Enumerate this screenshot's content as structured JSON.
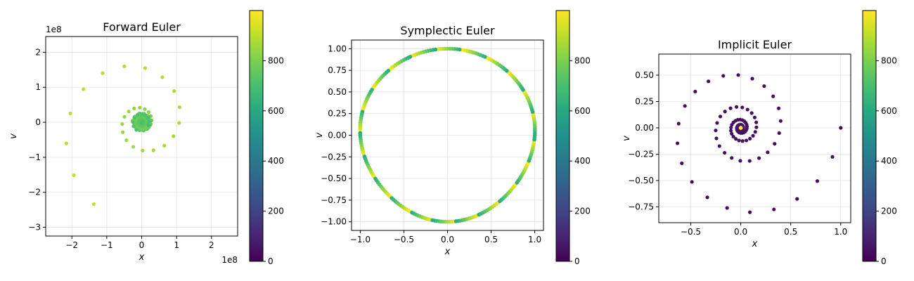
{
  "chart_data": [
    {
      "type": "scatter",
      "title": "Forward Euler",
      "xlabel": "x",
      "ylabel": "v",
      "xlim": [
        -2.75,
        2.75
      ],
      "ylim": [
        -3.25,
        2.45
      ],
      "x_offset_text": "1e8",
      "y_offset_text": "1e8",
      "xticks": [
        -2,
        -1,
        0,
        1,
        2
      ],
      "yticks": [
        -3,
        -2,
        -1,
        0,
        1,
        2
      ],
      "color_scale": {
        "min": 0,
        "max": 1000,
        "colormap": "viridis",
        "ticks": [
          0,
          200,
          400,
          600,
          800
        ]
      },
      "pattern": "expanding spiral, colors in upper range of scale",
      "grid": true
    },
    {
      "type": "scatter",
      "title": "Symplectic Euler",
      "xlabel": "x",
      "ylabel": "v",
      "xlim": [
        -1.1,
        1.1
      ],
      "ylim": [
        -1.1,
        1.1
      ],
      "xticks": [
        -1.0,
        -0.5,
        0.0,
        0.5,
        1.0
      ],
      "yticks": [
        -1.0,
        -0.75,
        -0.5,
        -0.25,
        0.0,
        0.25,
        0.5,
        0.75,
        1.0
      ],
      "color_scale": {
        "min": 0,
        "max": 1000,
        "colormap": "viridis",
        "ticks": [
          0,
          200,
          400,
          600,
          800
        ]
      },
      "pattern": "closed ellipse of radius ~1, all time steps",
      "grid": true
    },
    {
      "type": "scatter",
      "title": "Implicit Euler",
      "xlabel": "x",
      "ylabel": "v",
      "xlim": [
        -0.82,
        1.1
      ],
      "ylim": [
        -0.9,
        0.7
      ],
      "xticks": [
        -0.5,
        0.0,
        0.5,
        1.0
      ],
      "yticks": [
        -0.75,
        -0.5,
        -0.25,
        0.0,
        0.25,
        0.5
      ],
      "color_scale": {
        "min": 0,
        "max": 1000,
        "colormap": "viridis",
        "ticks": [
          0,
          200,
          400,
          600,
          800
        ]
      },
      "pattern": "contracting spiral toward origin",
      "grid": true
    }
  ]
}
